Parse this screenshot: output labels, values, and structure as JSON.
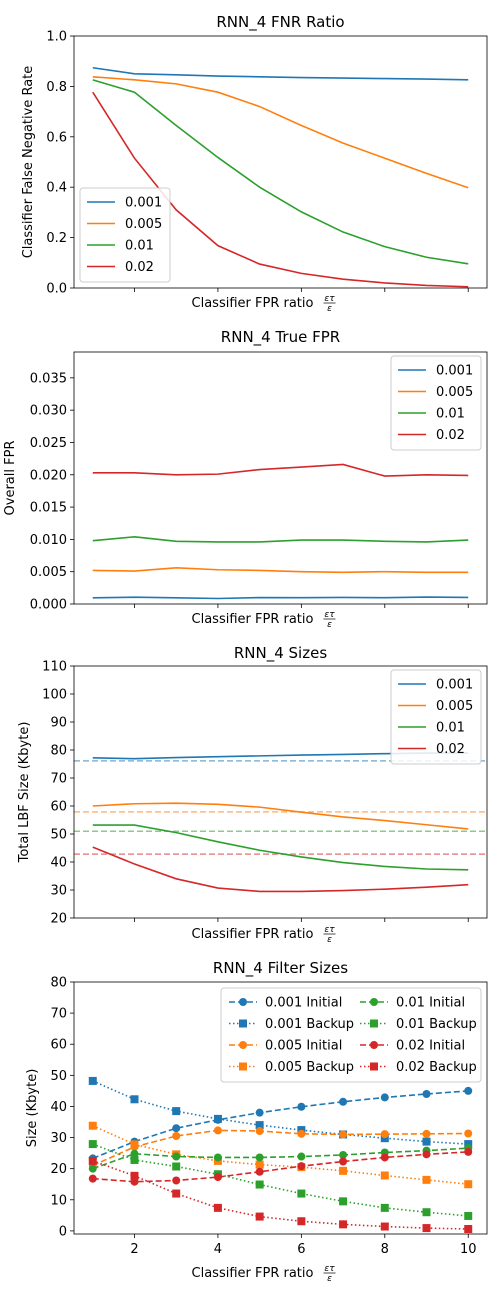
{
  "chart_data": [
    {
      "type": "line",
      "title": "RNN_4 FNR Ratio",
      "xlabel": "Classifier FPR ratio",
      "xlabel_math": "ετ/ε",
      "ylabel": "Classifier False Negative Rate",
      "x": [
        1,
        2,
        3,
        4,
        5,
        6,
        7,
        8,
        9,
        10
      ],
      "xlim": [
        0.55,
        10.45
      ],
      "ylim": [
        0,
        1.0
      ],
      "yticks": [
        "0.0",
        "0.2",
        "0.4",
        "0.6",
        "0.8",
        "1.0"
      ],
      "yticks_values": [
        0,
        0.2,
        0.4,
        0.6,
        0.8,
        1.0
      ],
      "show_x_ticklabels": false,
      "legend": "bottom-left",
      "series": [
        {
          "name": "0.001",
          "color": "#1f77b4",
          "values": [
            0.874,
            0.85,
            0.846,
            0.841,
            0.838,
            0.835,
            0.833,
            0.831,
            0.829,
            0.826
          ]
        },
        {
          "name": "0.005",
          "color": "#ff7f0e",
          "values": [
            0.838,
            0.826,
            0.81,
            0.777,
            0.72,
            0.645,
            0.575,
            0.515,
            0.455,
            0.398
          ]
        },
        {
          "name": "0.01",
          "color": "#2ca02c",
          "values": [
            0.826,
            0.777,
            0.645,
            0.518,
            0.4,
            0.302,
            0.222,
            0.164,
            0.122,
            0.096
          ]
        },
        {
          "name": "0.02",
          "color": "#d62728",
          "values": [
            0.777,
            0.515,
            0.31,
            0.168,
            0.095,
            0.058,
            0.035,
            0.02,
            0.01,
            0.005
          ]
        }
      ]
    },
    {
      "type": "line",
      "title": "RNN_4  True FPR",
      "xlabel": "Classifier FPR ratio",
      "xlabel_math": "ετ/ε",
      "ylabel": "Overall FPR",
      "x": [
        1,
        2,
        3,
        4,
        5,
        6,
        7,
        8,
        9,
        10
      ],
      "xlim": [
        0.55,
        10.45
      ],
      "ylim": [
        0,
        0.039
      ],
      "yticks": [
        "0.000",
        "0.005",
        "0.010",
        "0.015",
        "0.020",
        "0.025",
        "0.030",
        "0.035"
      ],
      "yticks_values": [
        0,
        0.005,
        0.01,
        0.015,
        0.02,
        0.025,
        0.03,
        0.035
      ],
      "show_x_ticklabels": false,
      "legend": "top-right",
      "series": [
        {
          "name": "0.001",
          "color": "#1f77b4",
          "values": [
            0.00095,
            0.00105,
            0.00095,
            0.00085,
            0.001,
            0.00098,
            0.00102,
            0.00098,
            0.00108,
            0.00102
          ]
        },
        {
          "name": "0.005",
          "color": "#ff7f0e",
          "values": [
            0.0052,
            0.0051,
            0.0056,
            0.0053,
            0.0052,
            0.005,
            0.0049,
            0.005,
            0.0049,
            0.0049
          ]
        },
        {
          "name": "0.01",
          "color": "#2ca02c",
          "values": [
            0.0098,
            0.0104,
            0.0097,
            0.0096,
            0.0096,
            0.0099,
            0.0099,
            0.0097,
            0.0096,
            0.0099
          ]
        },
        {
          "name": "0.02",
          "color": "#d62728",
          "values": [
            0.0203,
            0.0203,
            0.02,
            0.0201,
            0.0208,
            0.0212,
            0.0216,
            0.0198,
            0.02,
            0.0199
          ]
        }
      ]
    },
    {
      "type": "line",
      "title": "RNN_4 Sizes",
      "xlabel": "Classifier FPR ratio",
      "xlabel_math": "ετ/ε",
      "ylabel": "Total LBF Size (Kbyte)",
      "x": [
        1,
        2,
        3,
        4,
        5,
        6,
        7,
        8,
        9,
        10
      ],
      "xlim": [
        0.55,
        10.45
      ],
      "ylim": [
        20,
        110
      ],
      "yticks": [
        "20",
        "30",
        "40",
        "50",
        "60",
        "70",
        "80",
        "90",
        "100",
        "110"
      ],
      "yticks_values": [
        20,
        30,
        40,
        50,
        60,
        70,
        80,
        90,
        100,
        110
      ],
      "show_x_ticklabels": false,
      "legend": "top-right",
      "series": [
        {
          "name": "0.001",
          "color": "#1f77b4",
          "values": [
            77.2,
            76.9,
            77.3,
            77.6,
            77.9,
            78.2,
            78.4,
            78.7,
            78.9,
            78.9
          ]
        },
        {
          "name": "0.005",
          "color": "#ff7f0e",
          "values": [
            60.0,
            60.8,
            61.0,
            60.6,
            59.6,
            57.8,
            56.1,
            54.8,
            53.3,
            51.8
          ]
        },
        {
          "name": "0.01",
          "color": "#2ca02c",
          "values": [
            53.2,
            53.2,
            50.5,
            47.2,
            44.2,
            41.8,
            39.8,
            38.4,
            37.5,
            37.2
          ]
        },
        {
          "name": "0.02",
          "color": "#d62728",
          "values": [
            45.3,
            39.3,
            34.0,
            30.7,
            29.5,
            29.5,
            29.8,
            30.3,
            31.0,
            31.9
          ]
        }
      ],
      "reference_lines": [
        {
          "color": "#1f77b4",
          "value": 76.1
        },
        {
          "color": "#ff7f0e",
          "value": 57.9
        },
        {
          "color": "#2ca02c",
          "value": 51.0
        },
        {
          "color": "#d62728",
          "value": 42.8
        }
      ]
    },
    {
      "type": "line",
      "title": "RNN_4 Filter Sizes",
      "xlabel": "Classifier FPR ratio",
      "xlabel_math": "ετ/ε",
      "ylabel": "Size (Kbyte)",
      "x": [
        1,
        2,
        3,
        4,
        5,
        6,
        7,
        8,
        9,
        10
      ],
      "xlim": [
        0.55,
        10.45
      ],
      "ylim": [
        -1,
        80
      ],
      "yticks": [
        "0",
        "10",
        "20",
        "30",
        "40",
        "50",
        "60",
        "70",
        "80"
      ],
      "yticks_values": [
        0,
        10,
        20,
        30,
        40,
        50,
        60,
        70,
        80
      ],
      "xticks": [
        "2",
        "4",
        "6",
        "8",
        "10"
      ],
      "xticks_values": [
        2,
        4,
        6,
        8,
        10
      ],
      "show_x_ticklabels": true,
      "legend": "top-right",
      "legend_columns": 2,
      "series": [
        {
          "name": "0.001 Initial",
          "color": "#1f77b4",
          "linestyle": "dashed",
          "marker": "circle",
          "values": [
            23.3,
            28.7,
            33.0,
            35.7,
            38.0,
            39.9,
            41.5,
            42.9,
            44.0,
            45.0
          ]
        },
        {
          "name": "0.001 Backup",
          "color": "#1f77b4",
          "linestyle": "dotted",
          "marker": "square",
          "values": [
            48.2,
            42.3,
            38.5,
            36.0,
            34.0,
            32.4,
            31.0,
            29.8,
            28.7,
            27.9
          ]
        },
        {
          "name": "0.005 Initial",
          "color": "#ff7f0e",
          "linestyle": "dashed",
          "marker": "circle",
          "values": [
            21.0,
            27.0,
            30.5,
            32.3,
            32.1,
            31.2,
            31.0,
            31.1,
            31.2,
            31.3
          ]
        },
        {
          "name": "0.005 Backup",
          "color": "#ff7f0e",
          "linestyle": "dotted",
          "marker": "square",
          "values": [
            33.8,
            27.8,
            24.6,
            22.5,
            21.3,
            20.5,
            19.3,
            17.8,
            16.4,
            15.0
          ]
        },
        {
          "name": "0.01 Initial",
          "color": "#2ca02c",
          "linestyle": "dashed",
          "marker": "circle",
          "values": [
            20.0,
            24.8,
            23.9,
            23.6,
            23.6,
            23.9,
            24.4,
            25.2,
            25.8,
            26.6
          ]
        },
        {
          "name": "0.01 Backup",
          "color": "#2ca02c",
          "linestyle": "dotted",
          "marker": "square",
          "values": [
            27.9,
            22.8,
            20.7,
            18.2,
            14.9,
            12.0,
            9.5,
            7.4,
            6.0,
            4.8
          ]
        },
        {
          "name": "0.02 Initial",
          "color": "#d62728",
          "linestyle": "dashed",
          "marker": "circle",
          "values": [
            16.8,
            15.8,
            16.2,
            17.3,
            19.0,
            20.8,
            22.3,
            23.6,
            24.6,
            25.4
          ]
        },
        {
          "name": "0.02 Backup",
          "color": "#d62728",
          "linestyle": "dotted",
          "marker": "square",
          "values": [
            22.5,
            17.7,
            12.0,
            7.4,
            4.6,
            3.1,
            2.1,
            1.4,
            0.9,
            0.6
          ]
        }
      ]
    }
  ]
}
